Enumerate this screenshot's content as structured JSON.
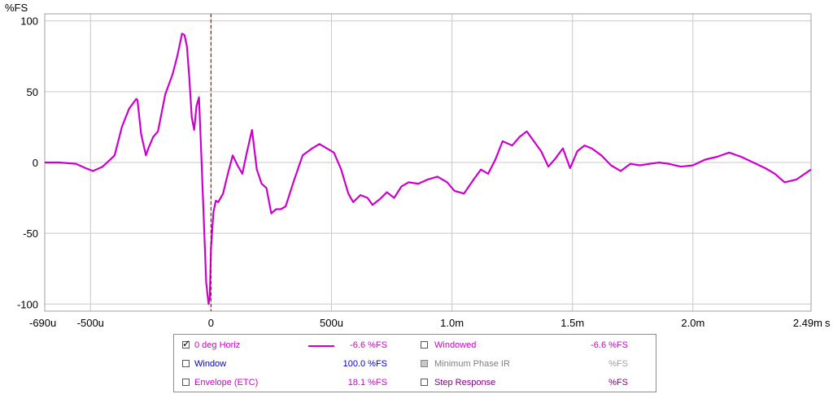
{
  "chart_data": {
    "type": "line",
    "ylabel": "%FS",
    "xunit": "s",
    "ylim": [
      -105,
      105
    ],
    "xlim": [
      -0.00069,
      0.00249
    ],
    "x_ticks": [
      {
        "value": -0.00069,
        "label": "-690u"
      },
      {
        "value": -0.0005,
        "label": "-500u"
      },
      {
        "value": 0.0,
        "label": "0"
      },
      {
        "value": 0.0005,
        "label": "500u"
      },
      {
        "value": 0.001,
        "label": "1.0m"
      },
      {
        "value": 0.0015,
        "label": "1.5m"
      },
      {
        "value": 0.002,
        "label": "2.0m"
      },
      {
        "value": 0.00249,
        "label": "2.49m"
      }
    ],
    "y_ticks": [
      {
        "value": 100,
        "label": "100"
      },
      {
        "value": 50,
        "label": "50"
      },
      {
        "value": 0,
        "label": "0"
      },
      {
        "value": -50,
        "label": "-50"
      },
      {
        "value": -100,
        "label": "-100"
      }
    ],
    "grid": true,
    "marker": {
      "x": 0.0,
      "color": "#cc0000"
    },
    "series": [
      {
        "name": "0 deg Horiz",
        "color": "#cc00cc",
        "x": [
          -0.00069,
          -0.00063,
          -0.00056,
          -0.00052,
          -0.00049,
          -0.00045,
          -0.0004,
          -0.00037,
          -0.00034,
          -0.00031,
          -0.000305,
          -0.00029,
          -0.00027,
          -0.00026,
          -0.00024,
          -0.00022,
          -0.00019,
          -0.00016,
          -0.00014,
          -0.00012,
          -0.00011,
          -0.0001,
          -9e-05,
          -8e-05,
          -7e-05,
          -6e-05,
          -5e-05,
          -4e-05,
          -3e-05,
          -2e-05,
          -1e-05,
          -5e-06,
          0.0,
          1e-05,
          2e-05,
          3e-05,
          5e-05,
          7e-05,
          9e-05,
          0.00011,
          0.00013,
          0.00015,
          0.00017,
          0.00019,
          0.00021,
          0.00023,
          0.00025,
          0.00027,
          0.00029,
          0.00031,
          0.00034,
          0.00038,
          0.00042,
          0.00045,
          0.00048,
          0.00051,
          0.00054,
          0.00057,
          0.00059,
          0.00062,
          0.00065,
          0.00067,
          0.0007,
          0.00073,
          0.00076,
          0.00079,
          0.00082,
          0.00086,
          0.0009,
          0.00094,
          0.00098,
          0.00101,
          0.00105,
          0.00109,
          0.00112,
          0.00115,
          0.00118,
          0.00121,
          0.00125,
          0.00128,
          0.00131,
          0.00134,
          0.00137,
          0.0014,
          0.00143,
          0.00146,
          0.00149,
          0.00152,
          0.00155,
          0.00158,
          0.00162,
          0.00166,
          0.0017,
          0.00174,
          0.00178,
          0.00182,
          0.00186,
          0.0019,
          0.00195,
          0.002,
          0.00205,
          0.0021,
          0.00215,
          0.0022,
          0.00225,
          0.0023,
          0.00234,
          0.00238,
          0.00243,
          0.00249
        ],
        "y": [
          0,
          0,
          -1,
          -4,
          -6,
          -3,
          5,
          25,
          38,
          45,
          44,
          20,
          5,
          10,
          18,
          22,
          48,
          62,
          75,
          91,
          90,
          82,
          60,
          32,
          23,
          40,
          46,
          5,
          -40,
          -85,
          -100,
          -95,
          -60,
          -35,
          -27,
          -28,
          -22,
          -8,
          5,
          -2,
          -8,
          8,
          23,
          -5,
          -15,
          -18,
          -36,
          -33,
          -33,
          -31,
          -15,
          5,
          10,
          13,
          10,
          7,
          -5,
          -22,
          -28,
          -23,
          -25,
          -30,
          -26,
          -21,
          -25,
          -17,
          -14,
          -15,
          -12,
          -10,
          -14,
          -20,
          -22,
          -12,
          -5,
          -8,
          2,
          15,
          12,
          18,
          22,
          15,
          8,
          -3,
          3,
          10,
          -4,
          8,
          12,
          10,
          5,
          -2,
          -6,
          -1,
          -2,
          -1,
          0,
          -1,
          -3,
          -2,
          2,
          4,
          7,
          4,
          0,
          -4,
          -8,
          -14,
          -12,
          -5
        ]
      }
    ]
  },
  "legend": {
    "rows": [
      {
        "left": {
          "label": "0 deg Horiz",
          "checked": true,
          "color": "#cc00cc",
          "value": "-6.6 %FS",
          "value_color": "#cc00cc"
        },
        "right": {
          "label": "Windowed",
          "checked": false,
          "color": "#cc00cc",
          "value": "-6.6 %FS",
          "value_color": "#cc00cc",
          "disabled": false
        }
      },
      {
        "left": {
          "label": "Window",
          "checked": false,
          "color": "#0000cc",
          "value": "100.0 %FS",
          "value_color": "#0000cc"
        },
        "right": {
          "label": "Minimum Phase IR",
          "checked": false,
          "color": "#808080",
          "value": "%FS",
          "value_color": "#a0a0a0",
          "disabled": true
        }
      },
      {
        "left": {
          "label": "Envelope (ETC)",
          "checked": false,
          "color": "#cc00cc",
          "value": "18.1 %FS",
          "value_color": "#cc00cc"
        },
        "right": {
          "label": "Step Response",
          "checked": false,
          "color": "#800080",
          "value": "%FS",
          "value_color": "#800080",
          "disabled": false
        }
      }
    ]
  }
}
